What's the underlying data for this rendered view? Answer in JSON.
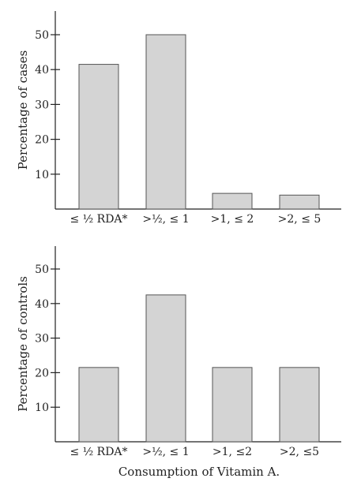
{
  "colors": {
    "bar_fill": "#d4d4d4",
    "bar_stroke": "#555555",
    "axis": "#222222"
  },
  "chart_data": [
    {
      "type": "bar",
      "categories": [
        "≤ ½ RDA*",
        ">½, ≤ 1",
        ">1, ≤ 2",
        ">2, ≤ 5"
      ],
      "values": [
        41.5,
        50,
        4.5,
        4
      ],
      "ylabel": "Percentage of cases",
      "xlabel": "",
      "ylim": [
        0,
        55
      ],
      "yticks": [
        10,
        20,
        30,
        40,
        50
      ],
      "grid": false
    },
    {
      "type": "bar",
      "categories": [
        "≤ ½ RDA*",
        ">½, ≤ 1",
        ">1, ≤2",
        ">2, ≤5"
      ],
      "values": [
        21.5,
        42.5,
        21.5,
        21.5
      ],
      "ylabel": "Percentage of controls",
      "xlabel": "Consumption of Vitamin A.",
      "ylim": [
        0,
        55
      ],
      "yticks": [
        10,
        20,
        30,
        40,
        50
      ],
      "grid": false
    }
  ]
}
